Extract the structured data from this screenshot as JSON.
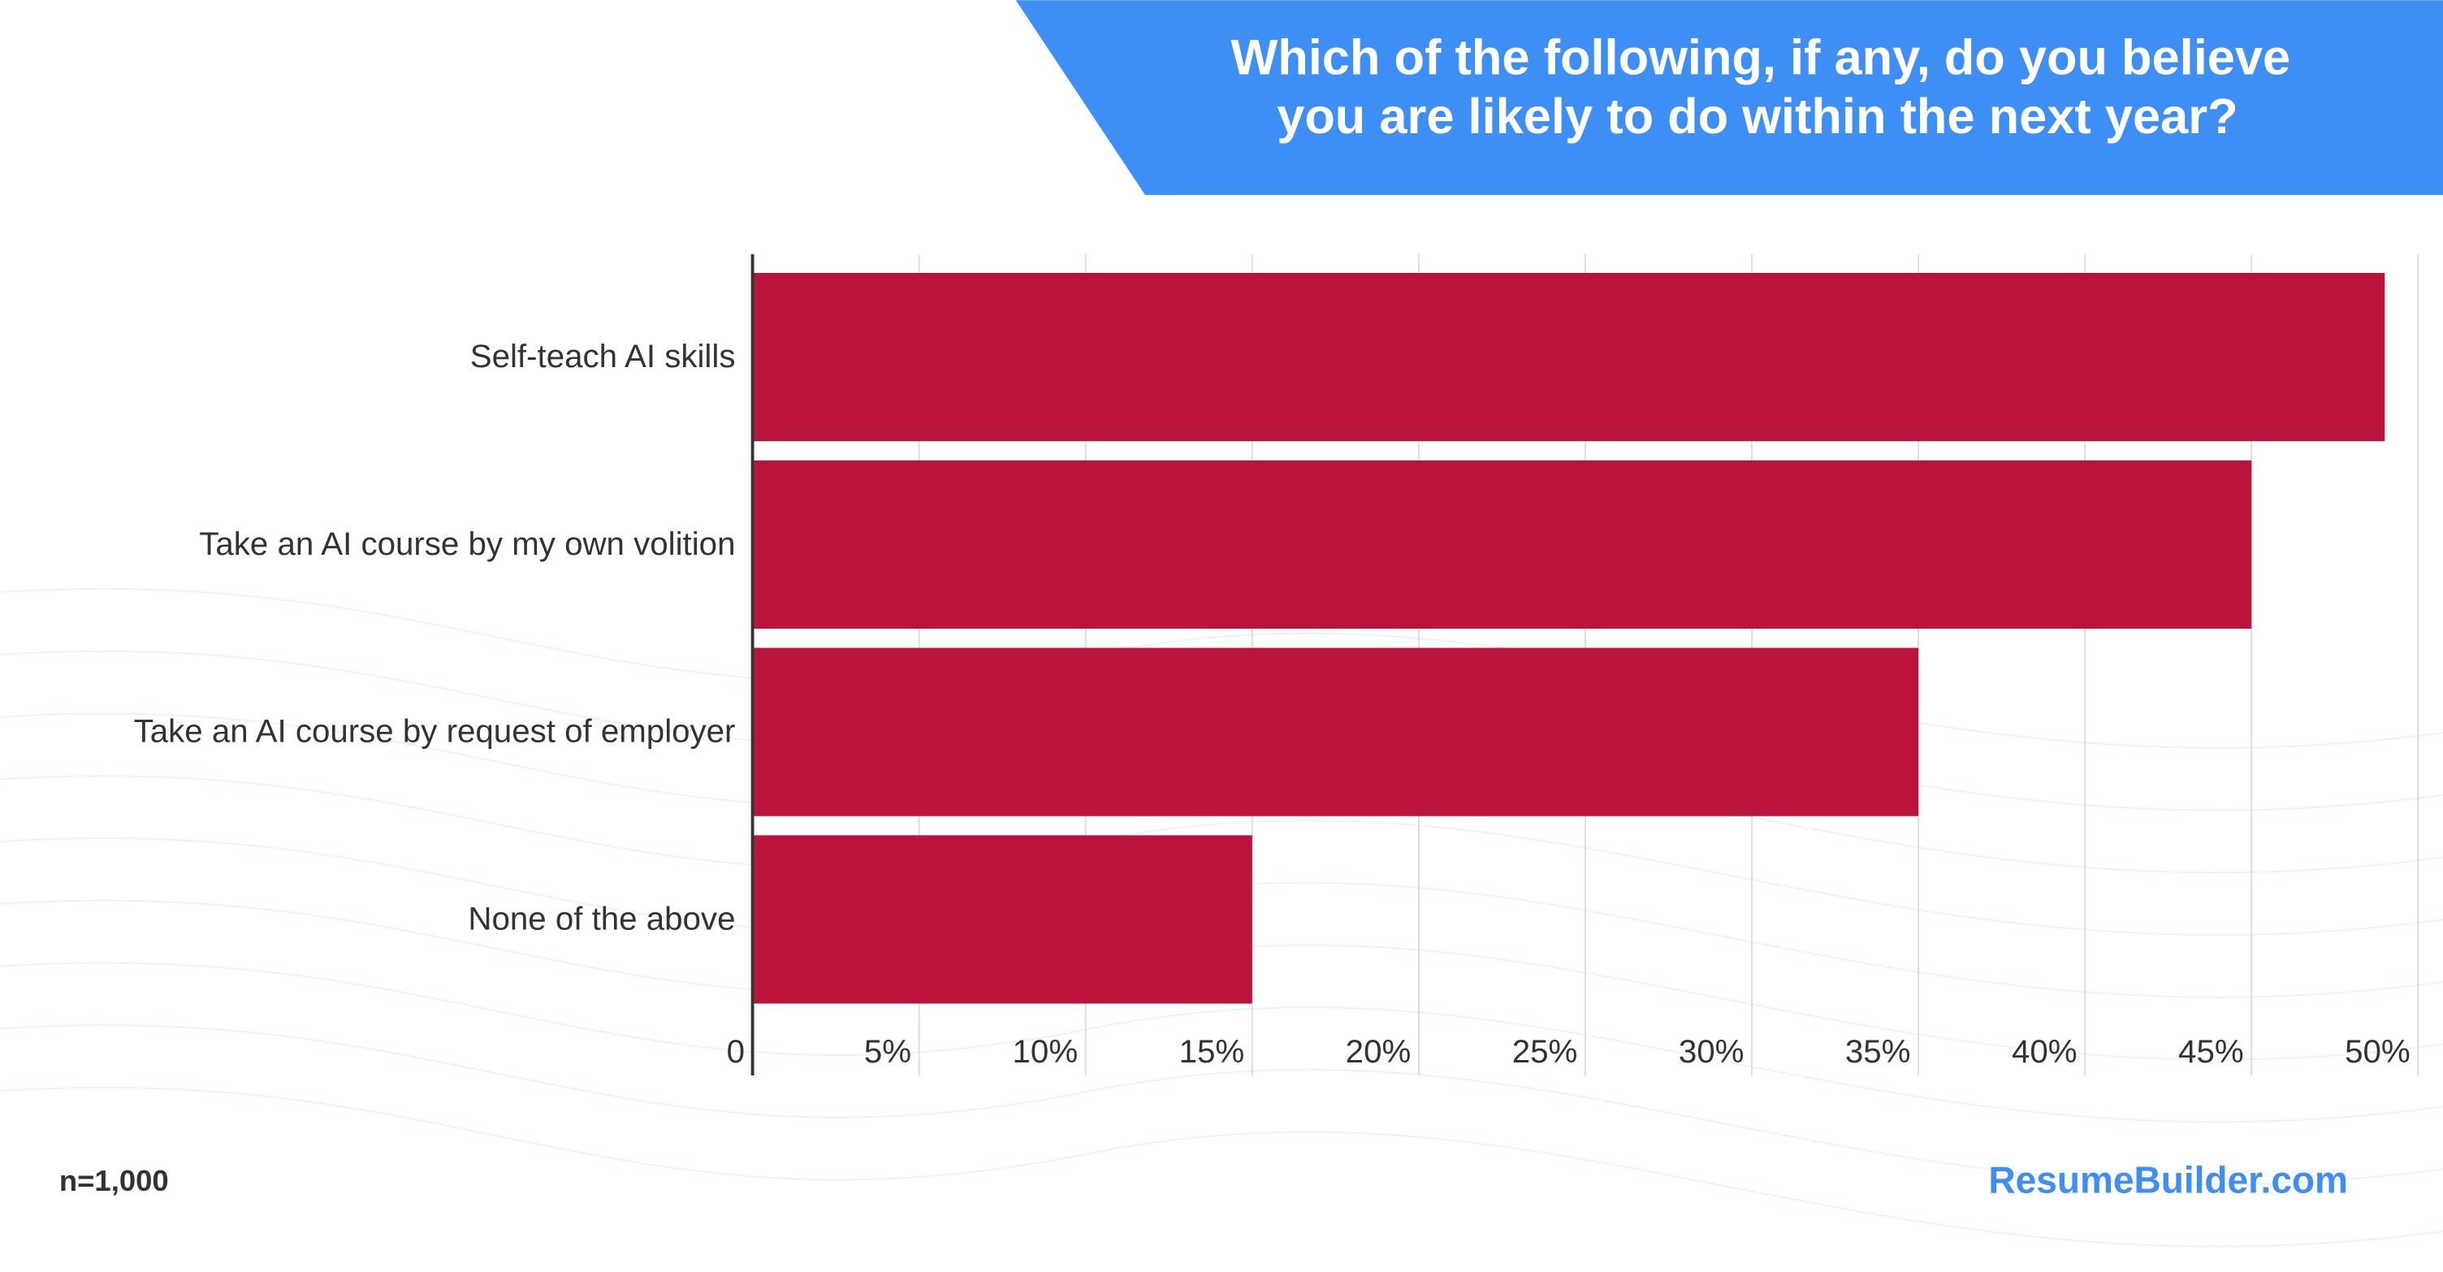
{
  "chart_data": {
    "type": "bar",
    "orientation": "horizontal",
    "title": [
      "Which of the following, if any, do you believe",
      "you are likely to do within the next year?"
    ],
    "categories": [
      "Self-teach AI skills",
      "Take an AI course by my own volition",
      "Take an AI course by request of employer",
      "None of the above"
    ],
    "values": [
      49,
      45,
      35,
      15
    ],
    "color": "#ba143c",
    "xlim": [
      0,
      50
    ],
    "xticks": [
      0,
      {
        "value": 5,
        "label": "5%"
      },
      {
        "value": 10,
        "label": "10%"
      },
      {
        "value": 15,
        "label": "15%"
      },
      {
        "value": 20,
        "label": "20%"
      },
      {
        "value": 25,
        "label": "25%"
      },
      {
        "value": 30,
        "label": "30%"
      },
      {
        "value": 35,
        "label": "35%"
      },
      {
        "value": 40,
        "label": "40%"
      },
      {
        "value": 45,
        "label": "45%"
      },
      {
        "value": 50,
        "label": "50%"
      }
    ],
    "grid": true,
    "note": "n=1,000",
    "source": "ResumeBuilder.com"
  }
}
